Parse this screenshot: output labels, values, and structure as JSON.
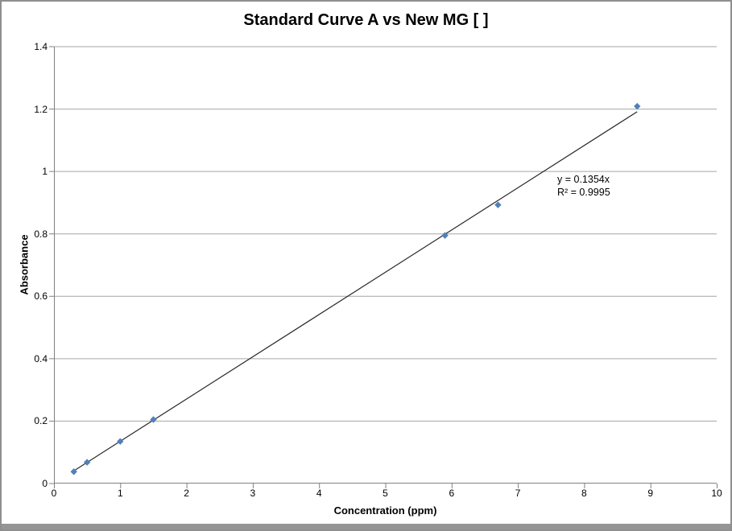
{
  "window": {
    "border_color": "#8f8f8f",
    "bottom_bar_color": "#959595",
    "background": "#ffffff"
  },
  "chart_data": {
    "type": "scatter",
    "title": "Standard Curve A vs New MG [ ]",
    "xlabel": "Concentration (ppm)",
    "ylabel": "Absorbance",
    "xlim": [
      0,
      10
    ],
    "ylim": [
      0,
      1.4
    ],
    "xticks": [
      0,
      1,
      2,
      3,
      4,
      5,
      6,
      7,
      8,
      9,
      10
    ],
    "xtick_labels": [
      "0",
      "1",
      "2",
      "3",
      "4",
      "5",
      "6",
      "7",
      "8",
      "9",
      "10"
    ],
    "yticks": [
      0,
      0.2,
      0.4,
      0.6,
      0.8,
      1,
      1.2,
      1.4
    ],
    "ytick_labels": [
      "0",
      "0.2",
      "0.4",
      "0.6",
      "0.8",
      "1",
      "1.2",
      "1.4"
    ],
    "grid": "horizontal-only",
    "legend": "none",
    "series": [
      {
        "name": "Standard Curve A",
        "marker": "diamond",
        "points": [
          [
            0.3,
            0.038
          ],
          [
            0.5,
            0.068
          ],
          [
            1.0,
            0.135
          ],
          [
            1.5,
            0.205
          ],
          [
            5.9,
            0.795
          ],
          [
            6.7,
            0.893
          ],
          [
            8.8,
            1.209
          ]
        ]
      }
    ],
    "trendline": {
      "slope": 0.1354,
      "intercept": 0,
      "x_start": 0.3,
      "x_end": 8.8,
      "equation": "y = 0.1354x",
      "r_squared": "R² = 0.9995"
    },
    "colors": {
      "marker": "#4f81bd",
      "trendline": "#262626",
      "gridline": "#a6a6a6",
      "axis": "#808080",
      "text": "#000000"
    }
  }
}
